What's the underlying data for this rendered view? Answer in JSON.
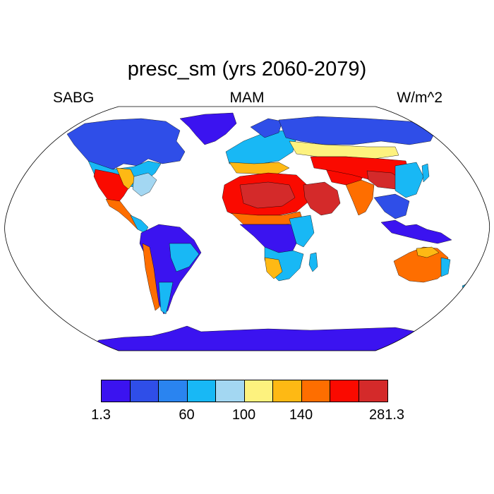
{
  "title": "presc_sm (yrs 2060-2079)",
  "left_label": "SABG",
  "center_label": "MAM",
  "right_label": "W/m^2",
  "colorbar": {
    "colors": [
      "#3b13f0",
      "#2f4ee8",
      "#2a84f0",
      "#18b8f5",
      "#a3d7f2",
      "#fdf27e",
      "#feb914",
      "#fe6e00",
      "#fa0a00",
      "#d42a2a"
    ],
    "labels": [
      {
        "text": "1.3",
        "boundary": 0
      },
      {
        "text": "60",
        "boundary": 3
      },
      {
        "text": "100",
        "boundary": 5
      },
      {
        "text": "140",
        "boundary": 7
      },
      {
        "text": "281.3",
        "boundary": 10
      }
    ]
  },
  "land_colors": {
    "antarctica": "#3b13f0",
    "greenland": "#3b13f0",
    "arctic": "#2a84f0",
    "boreal": "#2f4ee8",
    "midlat": "#18b8f5",
    "temperate": "#a3d7f2",
    "semiarid": "#fdf27e",
    "dry": "#feb914",
    "arid": "#fe6e00",
    "desert": "#fa0a00",
    "hotdesert": "#d42a2a",
    "tropics": "#3b13f0",
    "tropics2": "#2f4ee8"
  }
}
